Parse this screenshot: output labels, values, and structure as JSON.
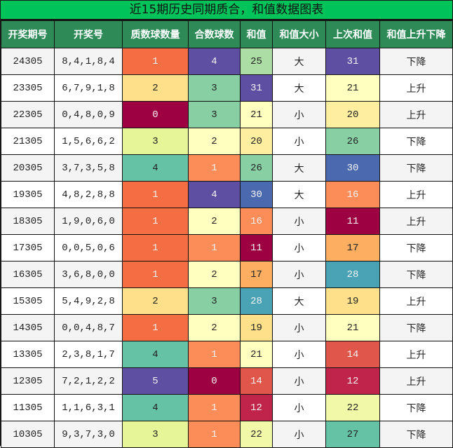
{
  "title": "近15期历史同期质合，和值数据图表",
  "headers": [
    "开奖期号",
    "开奖号",
    "质数球数量",
    "合数球数",
    "和值",
    "和值大小",
    "上次和值",
    "和值上升下降"
  ],
  "rows": [
    {
      "issue": "24305",
      "numbers": "8,4,1,8,4",
      "prime_count": "1",
      "composite_count": "4",
      "sum": "25",
      "size": "大",
      "prev_sum": "31",
      "trend": "下降"
    },
    {
      "issue": "23305",
      "numbers": "6,7,9,1,8",
      "prime_count": "2",
      "composite_count": "3",
      "sum": "31",
      "size": "大",
      "prev_sum": "21",
      "trend": "上升"
    },
    {
      "issue": "22305",
      "numbers": "0,4,8,0,9",
      "prime_count": "0",
      "composite_count": "3",
      "sum": "21",
      "size": "小",
      "prev_sum": "20",
      "trend": "上升"
    },
    {
      "issue": "21305",
      "numbers": "1,5,6,6,2",
      "prime_count": "3",
      "composite_count": "2",
      "sum": "20",
      "size": "小",
      "prev_sum": "26",
      "trend": "下降"
    },
    {
      "issue": "20305",
      "numbers": "3,7,3,5,8",
      "prime_count": "4",
      "composite_count": "1",
      "sum": "26",
      "size": "大",
      "prev_sum": "30",
      "trend": "下降"
    },
    {
      "issue": "19305",
      "numbers": "4,8,2,8,8",
      "prime_count": "1",
      "composite_count": "4",
      "sum": "30",
      "size": "大",
      "prev_sum": "16",
      "trend": "上升"
    },
    {
      "issue": "18305",
      "numbers": "1,9,0,6,0",
      "prime_count": "1",
      "composite_count": "2",
      "sum": "16",
      "size": "小",
      "prev_sum": "11",
      "trend": "上升"
    },
    {
      "issue": "17305",
      "numbers": "0,0,5,0,6",
      "prime_count": "1",
      "composite_count": "1",
      "sum": "11",
      "size": "小",
      "prev_sum": "17",
      "trend": "下降"
    },
    {
      "issue": "16305",
      "numbers": "3,6,8,0,0",
      "prime_count": "1",
      "composite_count": "2",
      "sum": "17",
      "size": "小",
      "prev_sum": "28",
      "trend": "下降"
    },
    {
      "issue": "15305",
      "numbers": "5,4,9,2,8",
      "prime_count": "2",
      "composite_count": "3",
      "sum": "28",
      "size": "大",
      "prev_sum": "19",
      "trend": "上升"
    },
    {
      "issue": "14305",
      "numbers": "0,0,4,8,7",
      "prime_count": "1",
      "composite_count": "2",
      "sum": "19",
      "size": "小",
      "prev_sum": "21",
      "trend": "下降"
    },
    {
      "issue": "13305",
      "numbers": "2,3,8,1,7",
      "prime_count": "4",
      "composite_count": "1",
      "sum": "21",
      "size": "小",
      "prev_sum": "14",
      "trend": "上升"
    },
    {
      "issue": "12305",
      "numbers": "7,2,1,2,2",
      "prime_count": "5",
      "composite_count": "0",
      "sum": "14",
      "size": "小",
      "prev_sum": "12",
      "trend": "上升"
    },
    {
      "issue": "11305",
      "numbers": "1,1,6,3,1",
      "prime_count": "4",
      "composite_count": "1",
      "sum": "12",
      "size": "小",
      "prev_sum": "22",
      "trend": "下降"
    },
    {
      "issue": "10305",
      "numbers": "9,3,7,3,0",
      "prime_count": "3",
      "composite_count": "1",
      "sum": "22",
      "size": "小",
      "prev_sum": "27",
      "trend": "下降"
    }
  ],
  "colors": {
    "title_bg": "#00c35a",
    "header_bg": "#2e8b57",
    "prime_count": {
      "0": "#9e0142",
      "1": "#f46d43",
      "2": "#fee08b",
      "3": "#e6f598",
      "4": "#66c2a5",
      "5": "#5e4fa2"
    },
    "composite_count": {
      "0": "#9e0142",
      "1": "#fc8d59",
      "2": "#ffffbf",
      "3": "#88d0a4",
      "4": "#5e4fa2"
    },
    "sum": {
      "11": "#9e0142",
      "12": "#c0244a",
      "14": "#e0564a",
      "16": "#fc8d59",
      "17": "#fdae61",
      "19": "#fee08b",
      "20": "#feefa0",
      "21": "#ffffbf",
      "22": "#f1f9a9",
      "25": "#abdda4",
      "26": "#88d0a4",
      "27": "#66c2a5",
      "28": "#4aa3b4",
      "30": "#4b69ae",
      "31": "#5e4fa2"
    }
  }
}
